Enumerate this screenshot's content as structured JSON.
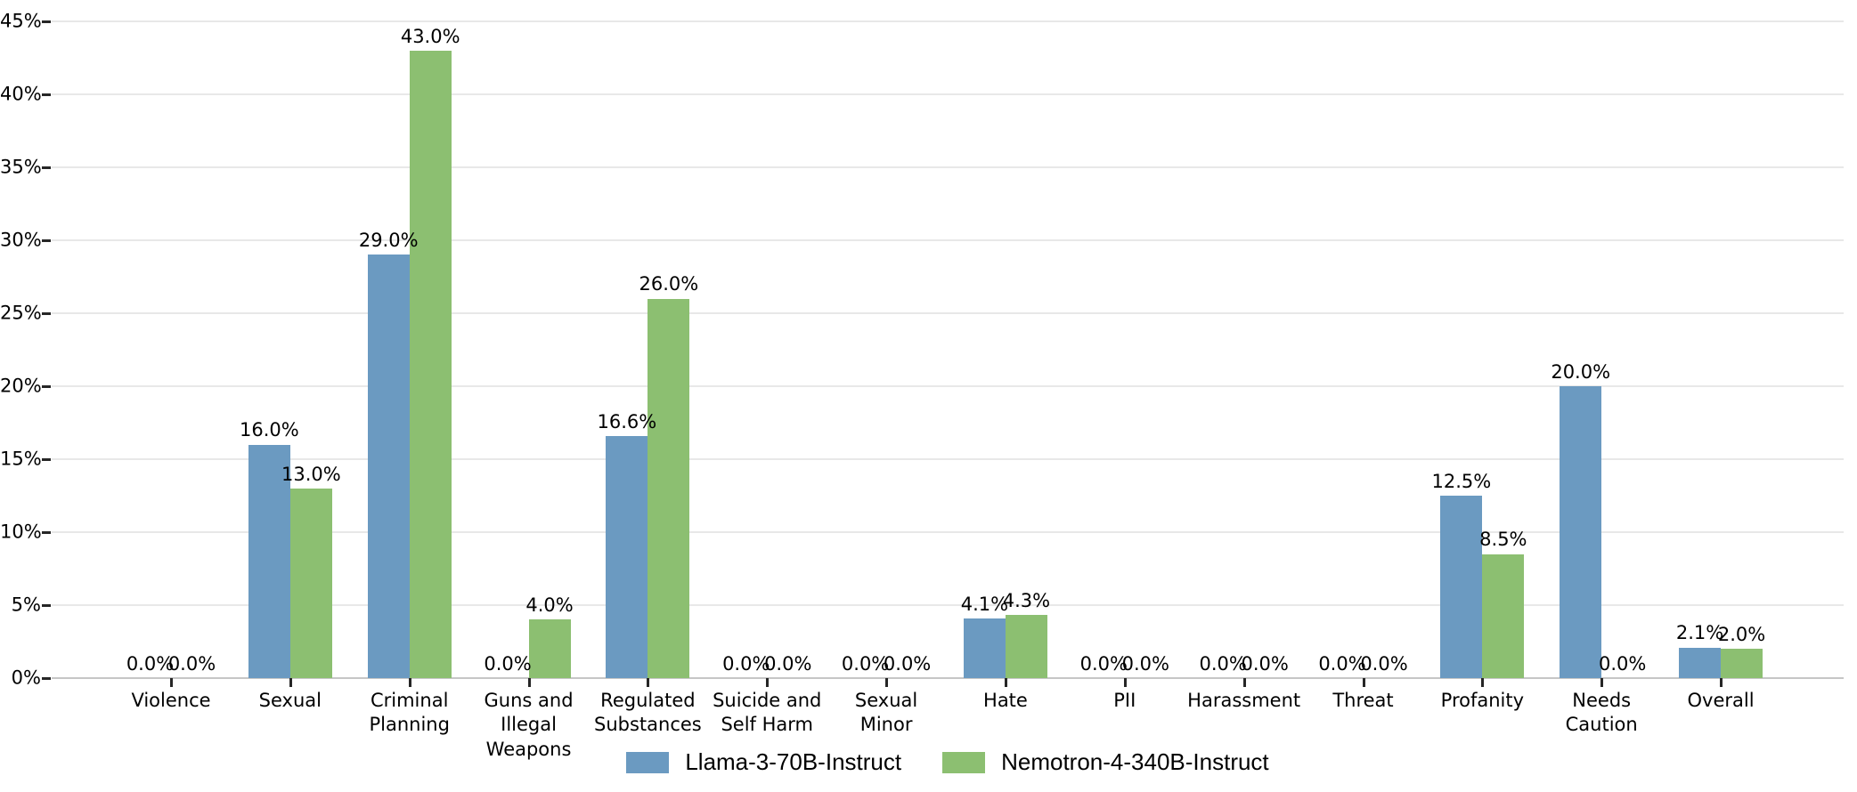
{
  "chart_data": {
    "type": "bar",
    "title": "",
    "xlabel": "",
    "ylabel": "",
    "ylim": [
      0,
      45
    ],
    "grid": "horizontal",
    "legend_position": "bottom-center",
    "yticks": [
      0,
      5,
      10,
      15,
      20,
      25,
      30,
      35,
      40,
      45
    ],
    "ytick_labels": [
      "0%",
      "5%",
      "10%",
      "15%",
      "20%",
      "25%",
      "30%",
      "35%",
      "40%",
      "45%"
    ],
    "categories": [
      "Violence",
      "Sexual",
      "Criminal Planning",
      "Guns and Illegal Weapons",
      "Regulated Substances",
      "Suicide and Self Harm",
      "Sexual Minor",
      "Hate",
      "PII",
      "Harassment",
      "Threat",
      "Profanity",
      "Needs Caution",
      "Overall"
    ],
    "category_tick_lines": [
      [
        "Violence"
      ],
      [
        "Sexual"
      ],
      [
        "Criminal",
        "Planning"
      ],
      [
        "Guns and",
        "Illegal",
        "Weapons"
      ],
      [
        "Regulated",
        "Substances"
      ],
      [
        "Suicide and",
        "Self Harm"
      ],
      [
        "Sexual",
        "Minor"
      ],
      [
        "Hate"
      ],
      [
        "PII"
      ],
      [
        "Harassment"
      ],
      [
        "Threat"
      ],
      [
        "Profanity"
      ],
      [
        "Needs",
        "Caution"
      ],
      [
        "Overall"
      ]
    ],
    "series": [
      {
        "name": "Llama-3-70B-Instruct",
        "color": "#6b9ac1",
        "values": [
          0.0,
          16.0,
          29.0,
          0.0,
          16.6,
          0.0,
          0.0,
          4.1,
          0.0,
          0.0,
          0.0,
          12.5,
          20.0,
          2.1
        ],
        "value_labels": [
          "0.0%",
          "16.0%",
          "29.0%",
          "0.0%",
          "16.6%",
          "0.0%",
          "0.0%",
          "4.1%",
          "0.0%",
          "0.0%",
          "0.0%",
          "12.5%",
          "20.0%",
          "2.1%"
        ]
      },
      {
        "name": "Nemotron-4-340B-Instruct",
        "color": "#8cbf71",
        "values": [
          0.0,
          13.0,
          43.0,
          4.0,
          26.0,
          0.0,
          0.0,
          4.3,
          0.0,
          0.0,
          0.0,
          8.5,
          0.0,
          2.0
        ],
        "value_labels": [
          "0.0%",
          "13.0%",
          "43.0%",
          "4.0%",
          "26.0%",
          "0.0%",
          "0.0%",
          "4.3%",
          "0.0%",
          "0.0%",
          "0.0%",
          "8.5%",
          "0.0%",
          "2.0%"
        ]
      }
    ],
    "legend": {
      "entries": [
        {
          "label": "Llama-3-70B-Instruct",
          "color": "#6b9ac1"
        },
        {
          "label": "Nemotron-4-340B-Instruct",
          "color": "#8cbf71"
        }
      ]
    }
  }
}
